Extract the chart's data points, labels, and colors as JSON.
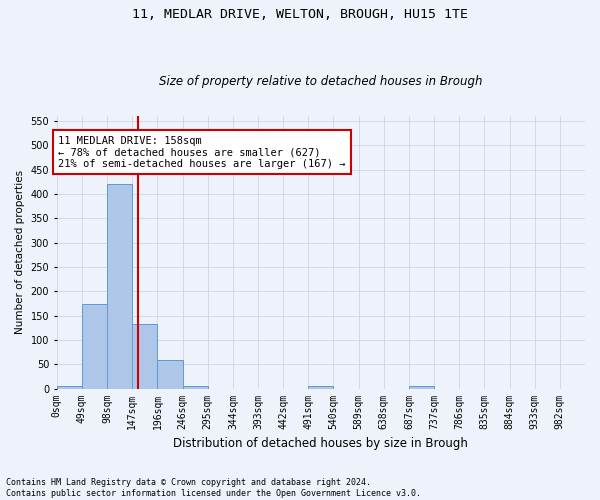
{
  "title1": "11, MEDLAR DRIVE, WELTON, BROUGH, HU15 1TE",
  "title2": "Size of property relative to detached houses in Brough",
  "xlabel": "Distribution of detached houses by size in Brough",
  "ylabel": "Number of detached properties",
  "footnote": "Contains HM Land Registry data © Crown copyright and database right 2024.\nContains public sector information licensed under the Open Government Licence v3.0.",
  "bin_labels": [
    "0sqm",
    "49sqm",
    "98sqm",
    "147sqm",
    "196sqm",
    "246sqm",
    "295sqm",
    "344sqm",
    "393sqm",
    "442sqm",
    "491sqm",
    "540sqm",
    "589sqm",
    "638sqm",
    "687sqm",
    "737sqm",
    "786sqm",
    "835sqm",
    "884sqm",
    "933sqm",
    "982sqm"
  ],
  "bar_values": [
    5,
    173,
    420,
    133,
    59,
    6,
    0,
    0,
    0,
    0,
    5,
    0,
    0,
    0,
    5,
    0,
    0,
    0,
    0,
    0,
    0
  ],
  "bar_color": "#aec6e8",
  "bar_edge_color": "#5b9bd5",
  "reference_line_x": 158,
  "bin_width": 49,
  "ylim": [
    0,
    560
  ],
  "yticks": [
    0,
    50,
    100,
    150,
    200,
    250,
    300,
    350,
    400,
    450,
    500,
    550
  ],
  "annotation_text": "11 MEDLAR DRIVE: 158sqm\n← 78% of detached houses are smaller (627)\n21% of semi-detached houses are larger (167) →",
  "annotation_box_color": "#ffffff",
  "annotation_box_edge": "#cc0000",
  "ref_line_color": "#cc0000",
  "background_color": "#eef2fa",
  "grid_color": "#c8d0e0",
  "title1_fontsize": 9.5,
  "title2_fontsize": 8.5,
  "xlabel_fontsize": 8.5,
  "ylabel_fontsize": 7.5,
  "tick_fontsize": 7,
  "annot_fontsize": 7.5,
  "footnote_fontsize": 6
}
